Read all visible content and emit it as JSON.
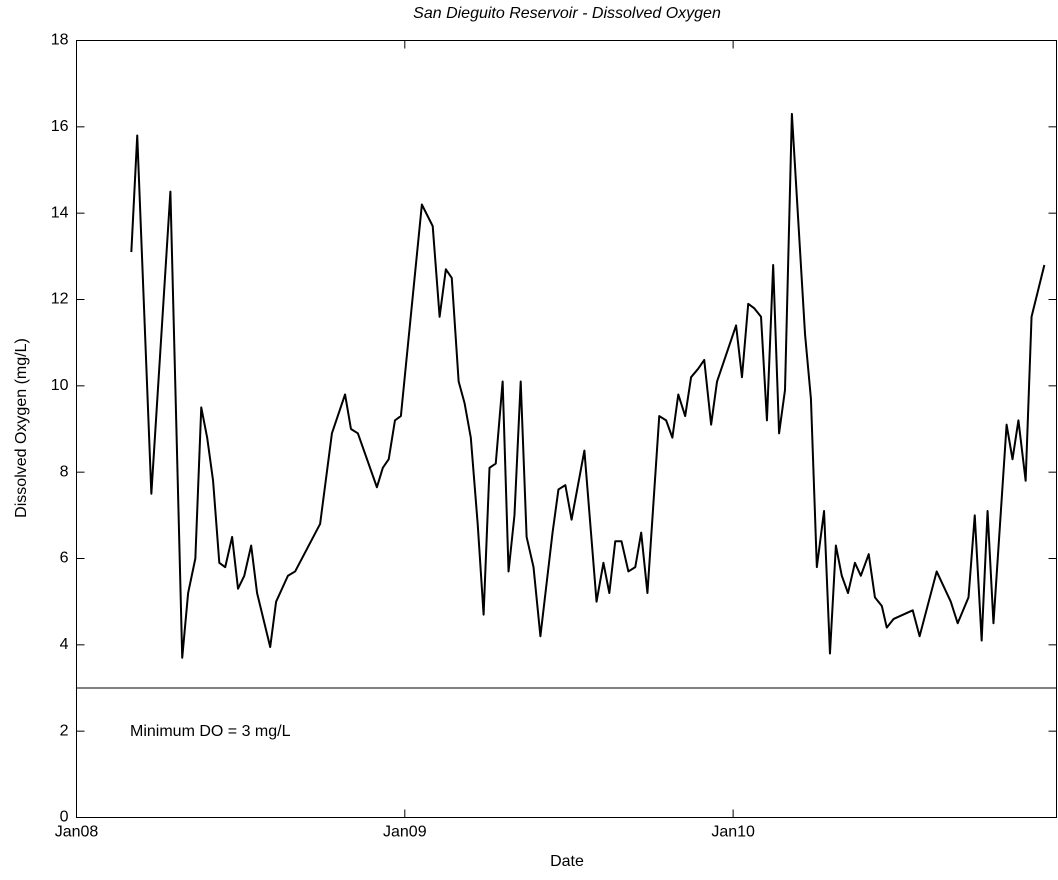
{
  "chart_data": {
    "type": "line",
    "title": "San Dieguito Reservoir - Dissolved Oxygen",
    "xlabel": "Date",
    "ylabel": "Dissolved Oxygen (mg/L)",
    "color": "#000000",
    "x": [
      2008.167,
      2008.185,
      2008.228,
      2008.286,
      2008.322,
      2008.34,
      2008.362,
      2008.38,
      2008.398,
      2008.416,
      2008.435,
      2008.453,
      2008.474,
      2008.492,
      2008.511,
      2008.532,
      2008.55,
      2008.59,
      2008.608,
      2008.644,
      2008.666,
      2008.742,
      2008.778,
      2008.818,
      2008.836,
      2008.857,
      2008.915,
      2008.933,
      2008.951,
      2008.97,
      2008.988,
      2009.052,
      2009.085,
      2009.106,
      2009.125,
      2009.143,
      2009.164,
      2009.182,
      2009.201,
      2009.222,
      2009.24,
      2009.258,
      2009.277,
      2009.298,
      2009.316,
      2009.334,
      2009.353,
      2009.371,
      2009.392,
      2009.413,
      2009.45,
      2009.468,
      2009.489,
      2009.508,
      2009.547,
      2009.584,
      2009.605,
      2009.623,
      2009.641,
      2009.66,
      2009.681,
      2009.702,
      2009.72,
      2009.739,
      2009.775,
      2009.796,
      2009.815,
      2009.833,
      2009.854,
      2009.872,
      2009.894,
      2009.912,
      2009.933,
      2009.951,
      2010.009,
      2010.027,
      2010.046,
      2010.064,
      2010.085,
      2010.103,
      2010.122,
      2010.14,
      2010.158,
      2010.179,
      2010.219,
      2010.237,
      2010.255,
      2010.277,
      2010.295,
      2010.313,
      2010.331,
      2010.35,
      2010.371,
      2010.389,
      2010.413,
      2010.432,
      2010.453,
      2010.468,
      2010.489,
      2010.547,
      2010.568,
      2010.62,
      2010.663,
      2010.684,
      2010.717,
      2010.736,
      2010.757,
      2010.775,
      2010.793,
      2010.833,
      2010.851,
      2010.869,
      2010.891,
      2010.909,
      2010.948
    ],
    "values": [
      13.1,
      15.8,
      7.5,
      14.5,
      3.7,
      5.2,
      6.0,
      9.5,
      8.8,
      7.8,
      5.9,
      5.8,
      6.5,
      5.3,
      5.6,
      6.3,
      5.2,
      3.95,
      5.0,
      5.6,
      5.7,
      6.8,
      8.9,
      9.8,
      9.0,
      8.9,
      7.65,
      8.1,
      8.3,
      9.2,
      9.3,
      14.2,
      13.7,
      11.6,
      12.7,
      12.5,
      10.1,
      9.6,
      8.8,
      6.8,
      4.7,
      8.1,
      8.2,
      10.1,
      5.7,
      7.0,
      10.1,
      6.5,
      5.8,
      4.2,
      6.6,
      7.6,
      7.7,
      6.9,
      8.5,
      5.0,
      5.9,
      5.2,
      6.4,
      6.4,
      5.7,
      5.8,
      6.6,
      5.2,
      9.3,
      9.2,
      8.8,
      9.8,
      9.3,
      10.2,
      10.4,
      10.6,
      9.1,
      10.1,
      11.4,
      10.2,
      11.9,
      11.8,
      11.6,
      9.2,
      12.8,
      8.9,
      9.9,
      16.3,
      11.2,
      9.7,
      5.8,
      7.1,
      3.8,
      6.3,
      5.6,
      5.2,
      5.9,
      5.6,
      6.1,
      5.1,
      4.9,
      4.4,
      4.6,
      4.8,
      4.2,
      5.7,
      5.0,
      4.5,
      5.1,
      7.0,
      4.1,
      7.1,
      4.5,
      9.1,
      8.3,
      9.2,
      7.8,
      11.6,
      12.8
    ],
    "xlim": [
      2008,
      2010.985
    ],
    "xticks": [
      {
        "value": 2008,
        "label": "Jan08"
      },
      {
        "value": 2009,
        "label": "Jan09"
      },
      {
        "value": 2010,
        "label": "Jan10"
      }
    ],
    "ylim": [
      0,
      18
    ],
    "yticks": [
      0,
      2,
      4,
      6,
      8,
      10,
      12,
      14,
      16,
      18
    ],
    "grid": false,
    "hline": {
      "value": 3,
      "label": "Minimum DO = 3 mg/L"
    }
  }
}
